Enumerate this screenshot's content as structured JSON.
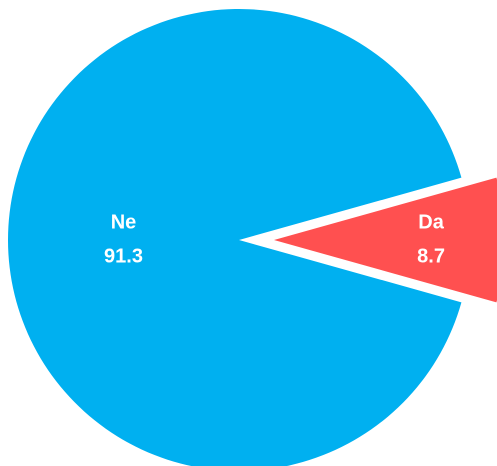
{
  "chart_data": {
    "type": "pie",
    "categories": [
      "Ne",
      "Da"
    ],
    "values": [
      91.3,
      8.7
    ],
    "colors": [
      "#00b0f0",
      "#ff5050"
    ]
  }
}
